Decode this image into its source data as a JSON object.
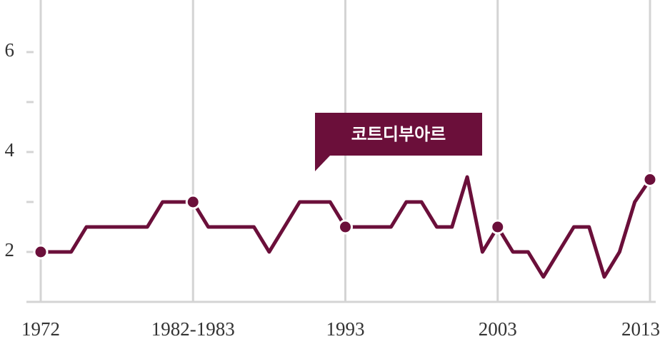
{
  "chart_data": {
    "type": "line",
    "categories": [
      "1972",
      null,
      null,
      null,
      null,
      null,
      null,
      null,
      null,
      null,
      "1982-1983",
      null,
      null,
      null,
      null,
      null,
      null,
      null,
      null,
      null,
      "1993",
      null,
      null,
      null,
      null,
      null,
      null,
      null,
      null,
      null,
      "2003",
      null,
      null,
      null,
      null,
      null,
      null,
      null,
      null,
      null,
      "2013"
    ],
    "values": [
      2,
      2,
      2,
      2.5,
      2.5,
      2.5,
      2.5,
      2.5,
      3,
      3,
      3,
      2.5,
      2.5,
      2.5,
      2.5,
      2,
      2.5,
      3,
      3,
      3,
      2.5,
      2.5,
      2.5,
      2.5,
      3,
      3,
      2.5,
      2.5,
      3.5,
      2,
      2.5,
      2,
      2,
      1.5,
      2,
      2.5,
      2.5,
      1.5,
      2,
      3,
      3.45
    ],
    "color": "#6b0f3a",
    "ylim": [
      1,
      7
    ],
    "yticks": [
      2,
      4,
      6
    ],
    "minor_yticks": [
      1,
      3,
      5
    ],
    "grid": true,
    "annotation": "코트디부아르"
  }
}
